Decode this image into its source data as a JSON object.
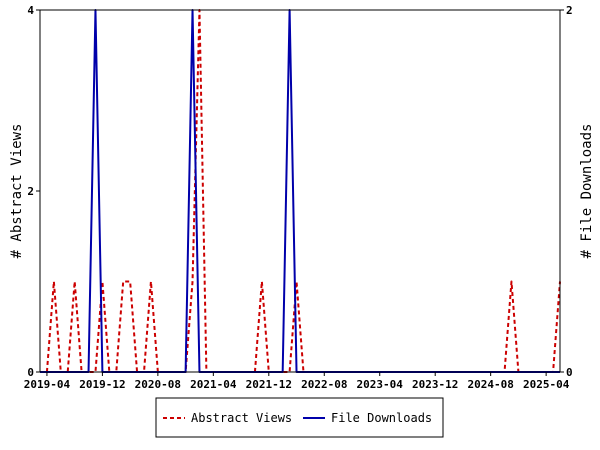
{
  "chart_data": {
    "type": "line",
    "grid": false,
    "legend_position": "bottom",
    "xlabel": "",
    "x_tick_labels": [
      "2019-04",
      "2019-12",
      "2020-08",
      "2021-04",
      "2021-12",
      "2022-08",
      "2023-04",
      "2023-12",
      "2024-08",
      "2025-04"
    ],
    "ylabel_left": "# Abstract Views",
    "ylabel_right": "# File Downloads",
    "ylim_left": [
      0,
      4
    ],
    "ylim_right": [
      0,
      2
    ],
    "y_ticks_left": [
      "0",
      "2",
      "4"
    ],
    "y_ticks_right": [
      "0",
      "2"
    ],
    "x": [
      "2019-03",
      "2019-04",
      "2019-05",
      "2019-06",
      "2019-07",
      "2019-08",
      "2019-09",
      "2019-10",
      "2019-11",
      "2019-12",
      "2020-01",
      "2020-02",
      "2020-03",
      "2020-04",
      "2020-05",
      "2020-06",
      "2020-07",
      "2020-08",
      "2020-09",
      "2020-10",
      "2020-11",
      "2020-12",
      "2021-01",
      "2021-02",
      "2021-03",
      "2021-04",
      "2021-05",
      "2021-06",
      "2021-07",
      "2021-08",
      "2021-09",
      "2021-10",
      "2021-11",
      "2021-12",
      "2022-01",
      "2022-02",
      "2022-03",
      "2022-04",
      "2022-05",
      "2022-06",
      "2022-07",
      "2022-08",
      "2022-09",
      "2022-10",
      "2022-11",
      "2022-12",
      "2023-01",
      "2023-02",
      "2023-03",
      "2023-04",
      "2023-05",
      "2023-06",
      "2023-07",
      "2023-08",
      "2023-09",
      "2023-10",
      "2023-11",
      "2023-12",
      "2024-01",
      "2024-02",
      "2024-03",
      "2024-04",
      "2024-05",
      "2024-06",
      "2024-07",
      "2024-08",
      "2024-09",
      "2024-10",
      "2024-11",
      "2024-12",
      "2025-01",
      "2025-02",
      "2025-03",
      "2025-04",
      "2025-05",
      "2025-06"
    ],
    "series": [
      {
        "name": "Abstract Views",
        "axis": "left",
        "color": "#cc0000",
        "dash": "dashed",
        "values": [
          0,
          0,
          1,
          0,
          0,
          1,
          0,
          0,
          0,
          1,
          0,
          0,
          1,
          1,
          0,
          0,
          1,
          0,
          0,
          0,
          0,
          0,
          1,
          4,
          0,
          0,
          0,
          0,
          0,
          0,
          0,
          0,
          1,
          0,
          0,
          0,
          0,
          1,
          0,
          0,
          0,
          0,
          0,
          0,
          0,
          0,
          0,
          0,
          0,
          0,
          0,
          0,
          0,
          0,
          0,
          0,
          0,
          0,
          0,
          0,
          0,
          0,
          0,
          0,
          0,
          0,
          0,
          0,
          1,
          0,
          0,
          0,
          0,
          0,
          0,
          1
        ]
      },
      {
        "name": "File Downloads",
        "axis": "right",
        "color": "#0000aa",
        "dash": "solid",
        "values": [
          0,
          0,
          0,
          0,
          0,
          0,
          0,
          0,
          2,
          0,
          0,
          0,
          0,
          0,
          0,
          0,
          0,
          0,
          0,
          0,
          0,
          0,
          2,
          0,
          0,
          0,
          0,
          0,
          0,
          0,
          0,
          0,
          0,
          0,
          0,
          0,
          2,
          0,
          0,
          0,
          0,
          0,
          0,
          0,
          0,
          0,
          0,
          0,
          0,
          0,
          0,
          0,
          0,
          0,
          0,
          0,
          0,
          0,
          0,
          0,
          0,
          0,
          0,
          0,
          0,
          0,
          0,
          0,
          0,
          0,
          0,
          0,
          0,
          0,
          0,
          0
        ]
      }
    ]
  },
  "legend": {
    "items": [
      {
        "label": "Abstract Views",
        "color": "#cc0000"
      },
      {
        "label": "File Downloads",
        "color": "#0000aa"
      }
    ]
  }
}
